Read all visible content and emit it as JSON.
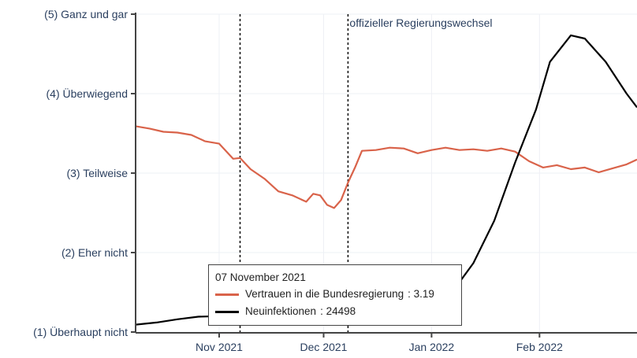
{
  "chart_data": {
    "type": "line",
    "title": "",
    "xlabel": "",
    "ylabel": "",
    "x_range": [
      "2021-10-08",
      "2022-03-01"
    ],
    "x_ticks": [
      {
        "date": "2021-11-01",
        "label": "Nov 2021"
      },
      {
        "date": "2021-12-01",
        "label": "Dec 2021"
      },
      {
        "date": "2022-01-01",
        "label": "Jan 2022"
      },
      {
        "date": "2022-02-01",
        "label": "Feb 2022"
      }
    ],
    "ylim": [
      1,
      5
    ],
    "y_ticks": [
      {
        "value": 1,
        "label": "(1) Überhaupt nicht"
      },
      {
        "value": 2,
        "label": "(2) Eher nicht"
      },
      {
        "value": 3,
        "label": "(3) Teilweise"
      },
      {
        "value": 4,
        "label": "(4) Überwiegend"
      },
      {
        "value": 5,
        "label": "(5) Ganz und gar"
      }
    ],
    "grid": true,
    "colors": {
      "trust": "#d9634a",
      "infections": "#000000",
      "axis": "#444444",
      "grid": "#eef0f5"
    },
    "vlines": [
      {
        "date": "2021-11-07"
      },
      {
        "date": "2021-12-08",
        "label": "offizieller Regierungswechsel"
      }
    ],
    "series": [
      {
        "name": "Vertrauen in die Bundesregierung",
        "axis": "left",
        "points": [
          [
            "2021-10-08",
            3.59
          ],
          [
            "2021-10-12",
            3.56
          ],
          [
            "2021-10-16",
            3.52
          ],
          [
            "2021-10-20",
            3.51
          ],
          [
            "2021-10-24",
            3.48
          ],
          [
            "2021-10-28",
            3.4
          ],
          [
            "2021-11-01",
            3.37
          ],
          [
            "2021-11-05",
            3.18
          ],
          [
            "2021-11-07",
            3.19
          ],
          [
            "2021-11-10",
            3.05
          ],
          [
            "2021-11-14",
            2.93
          ],
          [
            "2021-11-18",
            2.77
          ],
          [
            "2021-11-22",
            2.72
          ],
          [
            "2021-11-26",
            2.64
          ],
          [
            "2021-11-28",
            2.74
          ],
          [
            "2021-11-30",
            2.72
          ],
          [
            "2021-12-02",
            2.6
          ],
          [
            "2021-12-04",
            2.56
          ],
          [
            "2021-12-06",
            2.66
          ],
          [
            "2021-12-08",
            2.88
          ],
          [
            "2021-12-10",
            3.07
          ],
          [
            "2021-12-12",
            3.28
          ],
          [
            "2021-12-16",
            3.29
          ],
          [
            "2021-12-20",
            3.32
          ],
          [
            "2021-12-24",
            3.31
          ],
          [
            "2021-12-28",
            3.25
          ],
          [
            "2022-01-01",
            3.29
          ],
          [
            "2022-01-05",
            3.32
          ],
          [
            "2022-01-09",
            3.29
          ],
          [
            "2022-01-13",
            3.3
          ],
          [
            "2022-01-17",
            3.28
          ],
          [
            "2022-01-21",
            3.31
          ],
          [
            "2022-01-25",
            3.27
          ],
          [
            "2022-01-29",
            3.15
          ],
          [
            "2022-02-02",
            3.07
          ],
          [
            "2022-02-06",
            3.1
          ],
          [
            "2022-02-10",
            3.05
          ],
          [
            "2022-02-14",
            3.07
          ],
          [
            "2022-02-18",
            3.01
          ],
          [
            "2022-02-22",
            3.06
          ],
          [
            "2022-02-26",
            3.11
          ],
          [
            "2022-03-01",
            3.17
          ]
        ]
      },
      {
        "name": "Neuinfektionen",
        "axis": "right",
        "points": [
          [
            "2021-10-08",
            7000
          ],
          [
            "2021-10-14",
            9000
          ],
          [
            "2021-10-20",
            12000
          ],
          [
            "2021-10-26",
            14500
          ],
          [
            "2021-11-01",
            15000
          ],
          [
            "2021-11-07",
            24498
          ],
          [
            "2021-11-13",
            32000
          ],
          [
            "2021-11-19",
            40000
          ],
          [
            "2021-11-25",
            50000
          ],
          [
            "2021-12-01",
            54000
          ],
          [
            "2021-12-05",
            54500
          ],
          [
            "2021-12-10",
            52500
          ],
          [
            "2021-12-16",
            45000
          ],
          [
            "2021-12-22",
            35000
          ],
          [
            "2021-12-28",
            26000
          ],
          [
            "2022-01-01",
            28000
          ],
          [
            "2022-01-07",
            38000
          ],
          [
            "2022-01-13",
            65000
          ],
          [
            "2022-01-19",
            105000
          ],
          [
            "2022-01-25",
            160000
          ],
          [
            "2022-01-31",
            210000
          ],
          [
            "2022-02-04",
            255000
          ],
          [
            "2022-02-10",
            280000
          ],
          [
            "2022-02-14",
            277000
          ],
          [
            "2022-02-20",
            255000
          ],
          [
            "2022-02-26",
            225000
          ],
          [
            "2022-03-01",
            212000
          ]
        ]
      }
    ],
    "hover": {
      "title": "07 November 2021",
      "rows": [
        {
          "label": "Vertrauen in die Bundesregierung",
          "value": ": 3.19"
        },
        {
          "label": "Neuinfektionen",
          "value": ": 24498"
        }
      ]
    }
  }
}
